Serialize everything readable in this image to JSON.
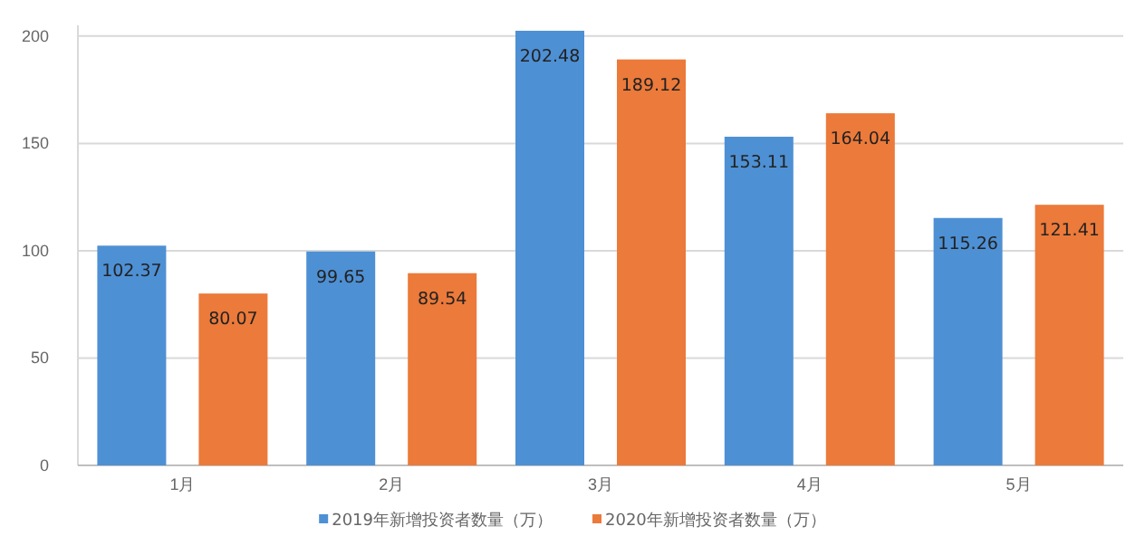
{
  "chart_data": {
    "type": "bar",
    "categories": [
      "1月",
      "2月",
      "3月",
      "4月",
      "5月"
    ],
    "series": [
      {
        "name": "2019年新增投资者数量（万）",
        "color": "#4e90d4",
        "values": [
          102.37,
          99.65,
          202.48,
          153.11,
          115.26
        ]
      },
      {
        "name": "2020年新增投资者数量（万）",
        "color": "#ec7a3a",
        "values": [
          80.07,
          89.54,
          189.12,
          164.04,
          121.41
        ]
      }
    ],
    "ylim": [
      0,
      205
    ],
    "yticks": [
      0,
      50,
      100,
      150,
      200
    ],
    "grid": "y",
    "legend": "bottom",
    "data_labels": true
  }
}
